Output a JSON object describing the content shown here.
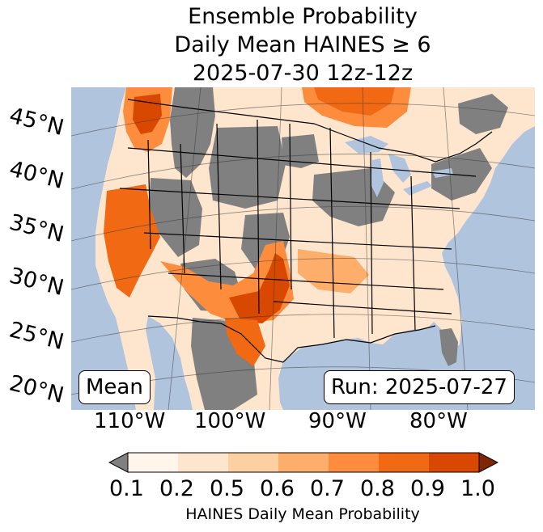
{
  "title": {
    "line1": "Ensemble Probability",
    "line2": "Daily Mean HAINES ≥ 6",
    "line3": "2025-07-30 12z-12z"
  },
  "map": {
    "latitude_labels": [
      "45°N",
      "40°N",
      "35°N",
      "30°N",
      "25°N",
      "20°N"
    ],
    "longitude_labels": [
      "110°W",
      "100°W",
      "90°W",
      "80°W"
    ],
    "statistic_box": "Mean",
    "run_box": "Run: 2025-07-27",
    "colors": {
      "ocean": "#b0c4de",
      "land_below_threshold": "#808080",
      "borders": "#000000"
    }
  },
  "colorbar": {
    "label": "HAINES Daily Mean Probability",
    "ticks": [
      "0.1",
      "0.2",
      "0.5",
      "0.6",
      "0.7",
      "0.8",
      "0.9",
      "1.0"
    ],
    "under_color": "#808080",
    "over_color": "#7f2704",
    "bin_colors": [
      "#fff5eb",
      "#fee6ce",
      "#fdd0a2",
      "#fdae6b",
      "#fd8d3c",
      "#f16913",
      "#d94801"
    ]
  }
}
